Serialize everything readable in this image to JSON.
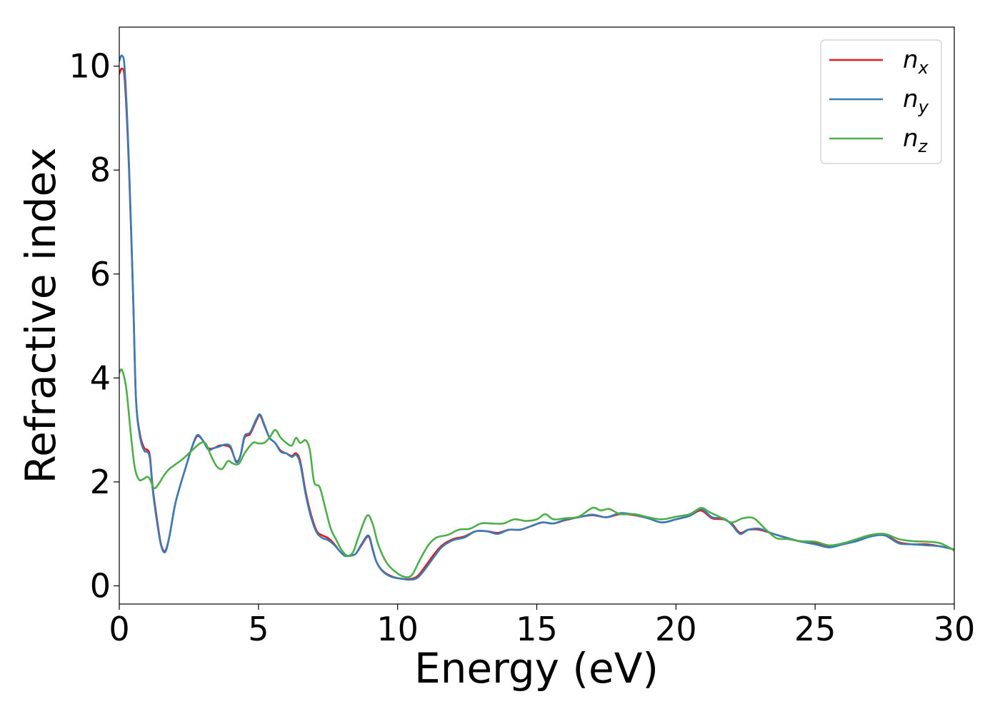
{
  "chart_data": {
    "type": "line",
    "title": "",
    "xlabel": "Energy (eV)",
    "ylabel": "Refractive index",
    "xlim": [
      0,
      30
    ],
    "ylim": [
      -0.35,
      10.75
    ],
    "xticks": [
      "0",
      "5",
      "10",
      "15",
      "20",
      "25",
      "30"
    ],
    "yticks": [
      "0",
      "2",
      "4",
      "6",
      "8",
      "10"
    ],
    "grid": false,
    "legend_position": "top-right",
    "series": [
      {
        "name": "n",
        "subscript": "x",
        "color": "#e41a1c",
        "points": [
          [
            0,
            9.85
          ],
          [
            0.1,
            9.95
          ],
          [
            0.2,
            9.7
          ],
          [
            0.35,
            8.0
          ],
          [
            0.5,
            5.5
          ],
          [
            0.6,
            3.6
          ],
          [
            0.75,
            2.9
          ],
          [
            0.9,
            2.65
          ],
          [
            1.0,
            2.62
          ],
          [
            1.1,
            2.5
          ],
          [
            1.2,
            1.9
          ],
          [
            1.35,
            1.3
          ],
          [
            1.5,
            0.8
          ],
          [
            1.65,
            0.67
          ],
          [
            1.8,
            0.95
          ],
          [
            2.0,
            1.55
          ],
          [
            2.2,
            1.95
          ],
          [
            2.4,
            2.3
          ],
          [
            2.6,
            2.65
          ],
          [
            2.8,
            2.88
          ],
          [
            3.0,
            2.8
          ],
          [
            3.2,
            2.65
          ],
          [
            3.4,
            2.65
          ],
          [
            3.6,
            2.7
          ],
          [
            3.8,
            2.7
          ],
          [
            4.0,
            2.65
          ],
          [
            4.2,
            2.4
          ],
          [
            4.35,
            2.5
          ],
          [
            4.5,
            2.85
          ],
          [
            4.7,
            2.92
          ],
          [
            4.9,
            3.15
          ],
          [
            5.05,
            3.28
          ],
          [
            5.2,
            3.1
          ],
          [
            5.4,
            2.85
          ],
          [
            5.6,
            2.75
          ],
          [
            5.8,
            2.6
          ],
          [
            6.0,
            2.55
          ],
          [
            6.2,
            2.5
          ],
          [
            6.35,
            2.55
          ],
          [
            6.5,
            2.4
          ],
          [
            6.7,
            1.8
          ],
          [
            6.9,
            1.35
          ],
          [
            7.1,
            1.05
          ],
          [
            7.3,
            0.97
          ],
          [
            7.5,
            0.92
          ],
          [
            7.7,
            0.82
          ],
          [
            7.9,
            0.68
          ],
          [
            8.1,
            0.58
          ],
          [
            8.3,
            0.58
          ],
          [
            8.5,
            0.62
          ],
          [
            8.7,
            0.78
          ],
          [
            8.95,
            0.95
          ],
          [
            9.1,
            0.7
          ],
          [
            9.25,
            0.45
          ],
          [
            9.5,
            0.27
          ],
          [
            9.8,
            0.18
          ],
          [
            10.1,
            0.14
          ],
          [
            10.4,
            0.13
          ],
          [
            10.7,
            0.18
          ],
          [
            11.0,
            0.38
          ],
          [
            11.3,
            0.6
          ],
          [
            11.6,
            0.78
          ],
          [
            12.0,
            0.9
          ],
          [
            12.4,
            0.95
          ],
          [
            12.8,
            1.05
          ],
          [
            13.2,
            1.05
          ],
          [
            13.6,
            1.02
          ],
          [
            14.0,
            1.08
          ],
          [
            14.4,
            1.08
          ],
          [
            14.8,
            1.15
          ],
          [
            15.2,
            1.22
          ],
          [
            15.6,
            1.2
          ],
          [
            16.0,
            1.26
          ],
          [
            16.5,
            1.32
          ],
          [
            17.0,
            1.36
          ],
          [
            17.5,
            1.32
          ],
          [
            18.0,
            1.38
          ],
          [
            18.5,
            1.36
          ],
          [
            19.0,
            1.3
          ],
          [
            19.5,
            1.22
          ],
          [
            20.0,
            1.28
          ],
          [
            20.5,
            1.35
          ],
          [
            20.9,
            1.45
          ],
          [
            21.3,
            1.3
          ],
          [
            21.7,
            1.28
          ],
          [
            22.0,
            1.2
          ],
          [
            22.3,
            1.02
          ],
          [
            22.6,
            1.08
          ],
          [
            23.0,
            1.08
          ],
          [
            23.5,
            1.0
          ],
          [
            24.0,
            0.92
          ],
          [
            24.5,
            0.85
          ],
          [
            25.0,
            0.83
          ],
          [
            25.5,
            0.76
          ],
          [
            26.0,
            0.8
          ],
          [
            26.5,
            0.87
          ],
          [
            27.0,
            0.97
          ],
          [
            27.5,
            0.98
          ],
          [
            28.0,
            0.84
          ],
          [
            28.5,
            0.8
          ],
          [
            29.0,
            0.8
          ],
          [
            29.5,
            0.76
          ],
          [
            30.0,
            0.7
          ]
        ]
      },
      {
        "name": "n",
        "subscript": "y",
        "color": "#377eb8",
        "points": [
          [
            0,
            10.1
          ],
          [
            0.1,
            10.2
          ],
          [
            0.2,
            9.9
          ],
          [
            0.35,
            8.1
          ],
          [
            0.5,
            5.55
          ],
          [
            0.6,
            3.6
          ],
          [
            0.75,
            2.85
          ],
          [
            0.9,
            2.6
          ],
          [
            1.0,
            2.58
          ],
          [
            1.1,
            2.45
          ],
          [
            1.2,
            1.85
          ],
          [
            1.35,
            1.25
          ],
          [
            1.5,
            0.78
          ],
          [
            1.65,
            0.65
          ],
          [
            1.8,
            0.95
          ],
          [
            2.0,
            1.55
          ],
          [
            2.2,
            1.95
          ],
          [
            2.4,
            2.3
          ],
          [
            2.6,
            2.65
          ],
          [
            2.8,
            2.9
          ],
          [
            3.0,
            2.8
          ],
          [
            3.2,
            2.62
          ],
          [
            3.4,
            2.65
          ],
          [
            3.6,
            2.68
          ],
          [
            3.8,
            2.72
          ],
          [
            4.0,
            2.68
          ],
          [
            4.2,
            2.38
          ],
          [
            4.35,
            2.5
          ],
          [
            4.5,
            2.88
          ],
          [
            4.7,
            2.95
          ],
          [
            4.9,
            3.18
          ],
          [
            5.05,
            3.3
          ],
          [
            5.2,
            3.12
          ],
          [
            5.4,
            2.85
          ],
          [
            5.6,
            2.75
          ],
          [
            5.8,
            2.58
          ],
          [
            6.0,
            2.55
          ],
          [
            6.2,
            2.48
          ],
          [
            6.35,
            2.52
          ],
          [
            6.5,
            2.35
          ],
          [
            6.7,
            1.75
          ],
          [
            6.9,
            1.3
          ],
          [
            7.1,
            1.02
          ],
          [
            7.3,
            0.92
          ],
          [
            7.5,
            0.88
          ],
          [
            7.7,
            0.8
          ],
          [
            7.9,
            0.68
          ],
          [
            8.1,
            0.58
          ],
          [
            8.3,
            0.58
          ],
          [
            8.5,
            0.62
          ],
          [
            8.7,
            0.8
          ],
          [
            8.95,
            0.97
          ],
          [
            9.1,
            0.72
          ],
          [
            9.25,
            0.45
          ],
          [
            9.5,
            0.26
          ],
          [
            9.8,
            0.17
          ],
          [
            10.1,
            0.14
          ],
          [
            10.4,
            0.12
          ],
          [
            10.7,
            0.15
          ],
          [
            11.0,
            0.33
          ],
          [
            11.3,
            0.55
          ],
          [
            11.6,
            0.75
          ],
          [
            12.0,
            0.88
          ],
          [
            12.4,
            0.93
          ],
          [
            12.8,
            1.05
          ],
          [
            13.2,
            1.05
          ],
          [
            13.6,
            1.0
          ],
          [
            14.0,
            1.08
          ],
          [
            14.4,
            1.08
          ],
          [
            14.8,
            1.15
          ],
          [
            15.2,
            1.22
          ],
          [
            15.6,
            1.2
          ],
          [
            16.0,
            1.27
          ],
          [
            16.5,
            1.32
          ],
          [
            17.0,
            1.37
          ],
          [
            17.5,
            1.32
          ],
          [
            18.0,
            1.4
          ],
          [
            18.5,
            1.37
          ],
          [
            19.0,
            1.3
          ],
          [
            19.5,
            1.22
          ],
          [
            20.0,
            1.28
          ],
          [
            20.5,
            1.35
          ],
          [
            20.9,
            1.48
          ],
          [
            21.3,
            1.32
          ],
          [
            21.7,
            1.3
          ],
          [
            22.0,
            1.18
          ],
          [
            22.3,
            1.0
          ],
          [
            22.6,
            1.08
          ],
          [
            23.0,
            1.1
          ],
          [
            23.5,
            1.0
          ],
          [
            24.0,
            0.92
          ],
          [
            24.5,
            0.85
          ],
          [
            25.0,
            0.8
          ],
          [
            25.5,
            0.74
          ],
          [
            26.0,
            0.8
          ],
          [
            26.5,
            0.86
          ],
          [
            27.0,
            0.95
          ],
          [
            27.5,
            0.97
          ],
          [
            28.0,
            0.82
          ],
          [
            28.5,
            0.8
          ],
          [
            29.0,
            0.78
          ],
          [
            29.5,
            0.76
          ],
          [
            30.0,
            0.7
          ]
        ]
      },
      {
        "name": "n",
        "subscript": "z",
        "color": "#4daf4a",
        "points": [
          [
            0,
            4.1
          ],
          [
            0.1,
            4.15
          ],
          [
            0.25,
            3.8
          ],
          [
            0.4,
            3.0
          ],
          [
            0.55,
            2.3
          ],
          [
            0.7,
            2.05
          ],
          [
            0.85,
            2.05
          ],
          [
            1.0,
            2.1
          ],
          [
            1.1,
            2.05
          ],
          [
            1.25,
            1.88
          ],
          [
            1.4,
            1.95
          ],
          [
            1.6,
            2.12
          ],
          [
            1.8,
            2.25
          ],
          [
            2.0,
            2.33
          ],
          [
            2.3,
            2.45
          ],
          [
            2.6,
            2.6
          ],
          [
            2.9,
            2.74
          ],
          [
            3.1,
            2.74
          ],
          [
            3.3,
            2.5
          ],
          [
            3.5,
            2.3
          ],
          [
            3.7,
            2.25
          ],
          [
            3.9,
            2.4
          ],
          [
            4.1,
            2.35
          ],
          [
            4.3,
            2.35
          ],
          [
            4.5,
            2.55
          ],
          [
            4.8,
            2.75
          ],
          [
            5.0,
            2.74
          ],
          [
            5.2,
            2.75
          ],
          [
            5.4,
            2.85
          ],
          [
            5.6,
            3.0
          ],
          [
            5.8,
            2.85
          ],
          [
            6.0,
            2.75
          ],
          [
            6.2,
            2.7
          ],
          [
            6.35,
            2.85
          ],
          [
            6.5,
            2.75
          ],
          [
            6.7,
            2.8
          ],
          [
            6.85,
            2.6
          ],
          [
            7.0,
            2.0
          ],
          [
            7.2,
            1.9
          ],
          [
            7.4,
            1.5
          ],
          [
            7.6,
            1.1
          ],
          [
            7.8,
            0.88
          ],
          [
            8.0,
            0.68
          ],
          [
            8.2,
            0.58
          ],
          [
            8.4,
            0.65
          ],
          [
            8.6,
            0.95
          ],
          [
            8.9,
            1.35
          ],
          [
            9.1,
            1.2
          ],
          [
            9.3,
            0.8
          ],
          [
            9.6,
            0.45
          ],
          [
            9.9,
            0.28
          ],
          [
            10.2,
            0.18
          ],
          [
            10.5,
            0.2
          ],
          [
            10.8,
            0.5
          ],
          [
            11.1,
            0.78
          ],
          [
            11.4,
            0.93
          ],
          [
            11.8,
            0.98
          ],
          [
            12.2,
            1.08
          ],
          [
            12.6,
            1.1
          ],
          [
            13.0,
            1.2
          ],
          [
            13.4,
            1.2
          ],
          [
            13.8,
            1.2
          ],
          [
            14.2,
            1.28
          ],
          [
            14.6,
            1.25
          ],
          [
            15.0,
            1.28
          ],
          [
            15.3,
            1.38
          ],
          [
            15.6,
            1.28
          ],
          [
            16.0,
            1.3
          ],
          [
            16.5,
            1.33
          ],
          [
            17.0,
            1.5
          ],
          [
            17.3,
            1.45
          ],
          [
            17.6,
            1.48
          ],
          [
            18.0,
            1.38
          ],
          [
            18.5,
            1.38
          ],
          [
            19.0,
            1.32
          ],
          [
            19.5,
            1.28
          ],
          [
            20.0,
            1.33
          ],
          [
            20.5,
            1.38
          ],
          [
            20.9,
            1.5
          ],
          [
            21.2,
            1.42
          ],
          [
            21.6,
            1.32
          ],
          [
            22.0,
            1.22
          ],
          [
            22.4,
            1.3
          ],
          [
            22.8,
            1.3
          ],
          [
            23.2,
            1.1
          ],
          [
            23.6,
            0.92
          ],
          [
            24.0,
            0.9
          ],
          [
            24.5,
            0.86
          ],
          [
            25.0,
            0.85
          ],
          [
            25.5,
            0.78
          ],
          [
            26.0,
            0.82
          ],
          [
            26.5,
            0.9
          ],
          [
            27.0,
            0.98
          ],
          [
            27.5,
            1.0
          ],
          [
            28.0,
            0.9
          ],
          [
            28.5,
            0.86
          ],
          [
            29.0,
            0.85
          ],
          [
            29.5,
            0.82
          ],
          [
            30.0,
            0.68
          ]
        ]
      }
    ]
  }
}
